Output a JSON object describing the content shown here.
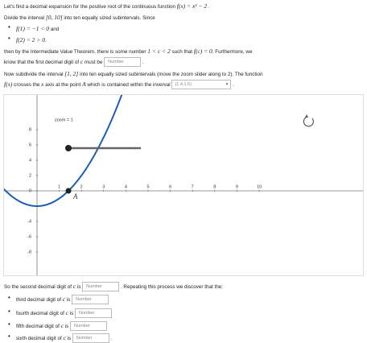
{
  "intro": [
    "Let's find a decimal expansion for the positive root of the continuous function ",
    "f(x) = x² − 2",
    " ."
  ],
  "divide": [
    "Divide the interval ",
    "[0, 10]",
    " into ten equally sized subintervals. Since"
  ],
  "bullets": [
    [
      "f(1) = −1 < 0",
      " and"
    ],
    [
      "f(2) = 2 > 0",
      "."
    ]
  ],
  "ivt": [
    "then by the Intermediate Value Theorem, there is some number ",
    "1 < c < 2",
    " such that ",
    "f(c) = 0",
    ". Furthermore, we"
  ],
  "first_digit": [
    "know that the first decimal digit of ",
    "c",
    " must be ",
    "."
  ],
  "placeholder": "Number",
  "subdivide": [
    "Now subdivide the interval ",
    "[1, 2]",
    " into ten equally sized subintervals (move the zoom slider along to 2). The function"
  ],
  "cross": [
    "f(x)",
    " crosses the ",
    "x",
    " axis at the point ",
    "A",
    " which is contained within the inverval ",
    "."
  ],
  "dropdown": "(1.4,1.5)",
  "graph": {
    "xticks": [
      1,
      2,
      3,
      4,
      5,
      6,
      7,
      8,
      9,
      10
    ],
    "yticks": [
      8,
      6,
      4,
      2,
      0,
      -4,
      -6,
      -8
    ],
    "point_label": "A",
    "slider_label": "zoom = 1"
  },
  "second": [
    "So the second decimal digit of ",
    "c",
    " is ",
    ". Repeating this process we discover that the:"
  ],
  "items": [
    [
      "third decimal digit of ",
      "c",
      " is "
    ],
    [
      "fourth decimal digit of ",
      "c",
      " is "
    ],
    [
      "fifth decimal digit of ",
      "c",
      " is "
    ],
    [
      "sixth decimal digit of ",
      "c",
      " is ",
      "."
    ]
  ]
}
